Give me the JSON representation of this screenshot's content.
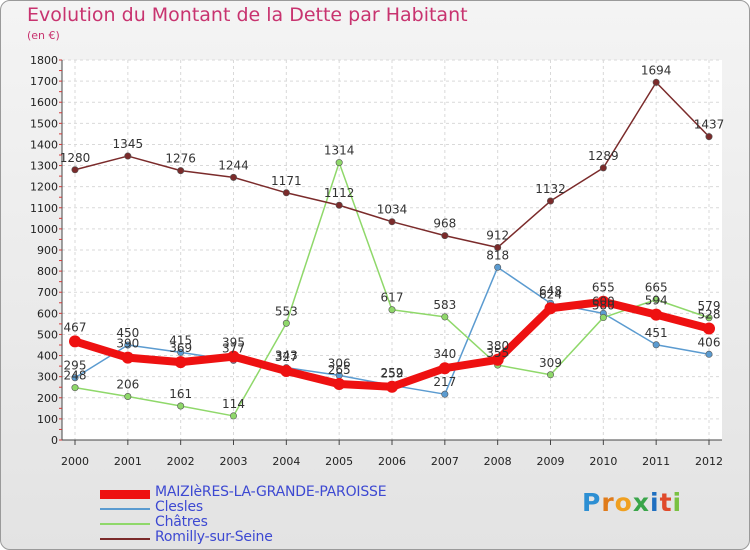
{
  "title": "Evolution du Montant de la Dette par Habitant",
  "subtitle": "(en €)",
  "brand": {
    "letters": [
      "P",
      "r",
      "o",
      "x",
      "i",
      "t",
      "i"
    ],
    "colors": [
      "#2d8fd3",
      "#e07b1a",
      "#f0a020",
      "#3aa54a",
      "#1f6fc0",
      "#e04a2a",
      "#7ac142"
    ]
  },
  "chart_data": {
    "type": "line",
    "x": [
      "2000",
      "2001",
      "2002",
      "2003",
      "2004",
      "2005",
      "2006",
      "2007",
      "2008",
      "2009",
      "2010",
      "2011",
      "2012"
    ],
    "ylim": [
      0,
      1800
    ],
    "yticks": [
      0,
      100,
      200,
      300,
      400,
      500,
      600,
      700,
      800,
      900,
      1000,
      1100,
      1200,
      1300,
      1400,
      1500,
      1600,
      1700,
      1800
    ],
    "grid": true,
    "legend_position": "bottom",
    "series": [
      {
        "name": "MAIZIèRES-LA-GRANDE-PAROISSE",
        "color": "#ee1111",
        "width": 8,
        "values": [
          467,
          390,
          369,
          395,
          327,
          265,
          252,
          340,
          380,
          624,
          655,
          594,
          528
        ]
      },
      {
        "name": "Clesles",
        "color": "#5b9bd0",
        "width": 1.5,
        "values": [
          295,
          450,
          415,
          377,
          343,
          306,
          259,
          217,
          818,
          648,
          600,
          451,
          406
        ]
      },
      {
        "name": "Châtres",
        "color": "#8fd86a",
        "width": 1.5,
        "values": [
          248,
          206,
          161,
          114,
          553,
          1314,
          617,
          583,
          355,
          309,
          580,
          665,
          579
        ]
      },
      {
        "name": "Romilly-sur-Seine",
        "color": "#7b2b2b",
        "width": 1.5,
        "values": [
          1280,
          1345,
          1276,
          1244,
          1171,
          1112,
          1034,
          968,
          912,
          1132,
          1289,
          1694,
          1437
        ]
      }
    ]
  }
}
